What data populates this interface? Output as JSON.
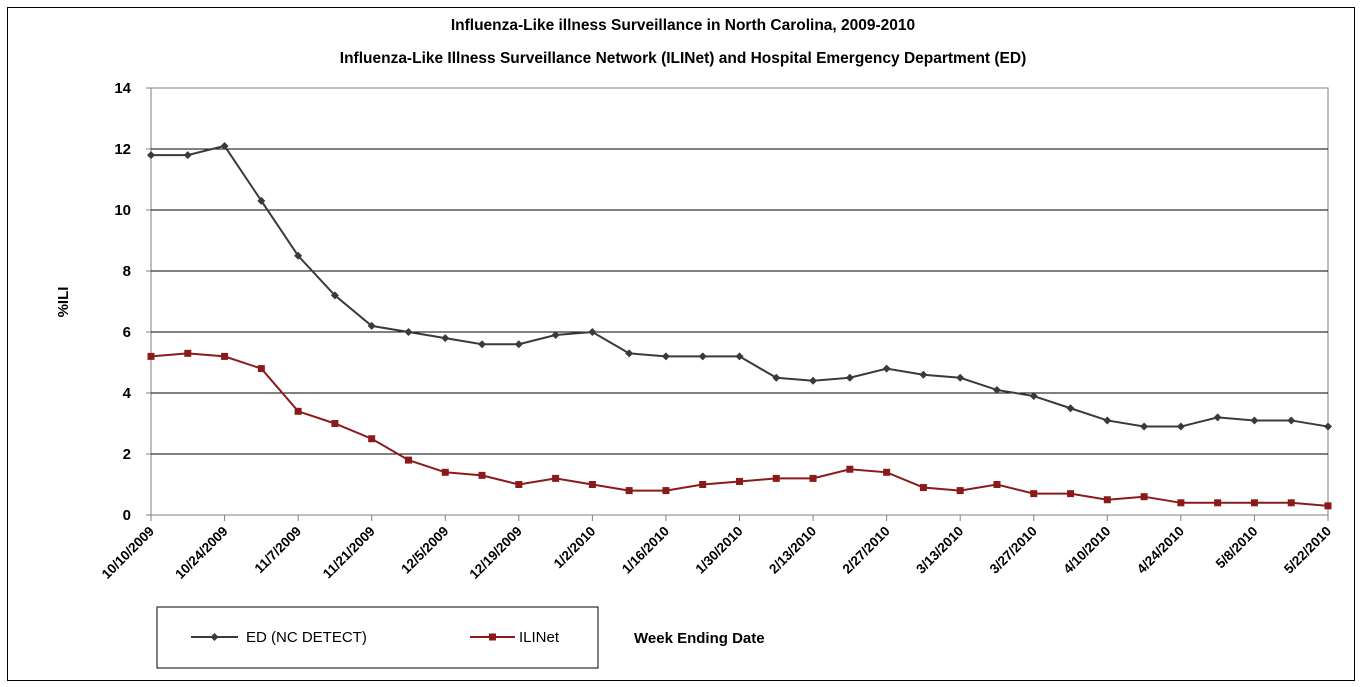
{
  "chart_data": {
    "type": "line",
    "title": "Influenza-Like illness Surveillance in North Carolina, 2009-2010",
    "subtitle": "Influenza-Like Illness Surveillance Network (ILINet) and Hospital Emergency Department (ED)",
    "ylabel": "%ILI",
    "xlabel": "Week Ending Date",
    "ylim": [
      0,
      14
    ],
    "yticks": [
      0,
      2,
      4,
      6,
      8,
      10,
      12,
      14
    ],
    "grid": "horizontal",
    "legend_position": "bottom-left",
    "x": [
      "10/10/2009",
      "10/17/2009",
      "10/24/2009",
      "10/31/2009",
      "11/7/2009",
      "11/14/2009",
      "11/21/2009",
      "11/28/2009",
      "12/5/2009",
      "12/12/2009",
      "12/19/2009",
      "12/26/2009",
      "1/2/2010",
      "1/9/2010",
      "1/16/2010",
      "1/23/2010",
      "1/30/2010",
      "2/6/2010",
      "2/13/2010",
      "2/20/2010",
      "2/27/2010",
      "3/6/2010",
      "3/13/2010",
      "3/20/2010",
      "3/27/2010",
      "4/3/2010",
      "4/10/2010",
      "4/17/2010",
      "4/24/2010",
      "5/1/2010",
      "5/8/2010",
      "5/15/2010",
      "5/22/2010"
    ],
    "x_tick_labels": [
      "10/10/2009",
      "10/24/2009",
      "11/7/2009",
      "11/21/2009",
      "12/5/2009",
      "12/19/2009",
      "1/2/2010",
      "1/16/2010",
      "1/30/2010",
      "2/13/2010",
      "2/27/2010",
      "3/13/2010",
      "3/27/2010",
      "4/10/2010",
      "4/24/2010",
      "5/8/2010",
      "5/22/2010"
    ],
    "series": [
      {
        "name": "ED (NC DETECT)",
        "color": "#3a3a3a",
        "marker": "diamond",
        "values": [
          11.8,
          11.8,
          12.1,
          10.3,
          8.5,
          7.2,
          6.2,
          6.0,
          5.8,
          5.6,
          5.6,
          5.9,
          6.0,
          5.3,
          5.2,
          5.2,
          5.2,
          4.5,
          4.4,
          4.5,
          4.8,
          4.6,
          4.5,
          4.1,
          3.9,
          3.5,
          3.1,
          2.9,
          2.9,
          3.2,
          3.1,
          3.1,
          2.9
        ]
      },
      {
        "name": "ILINet",
        "color": "#8b1a1a",
        "marker": "square",
        "values": [
          5.2,
          5.3,
          5.2,
          4.8,
          3.4,
          3.0,
          2.5,
          1.8,
          1.4,
          1.3,
          1.0,
          1.2,
          1.0,
          0.8,
          0.8,
          1.0,
          1.1,
          1.2,
          1.2,
          1.5,
          1.4,
          0.9,
          0.8,
          1.0,
          0.7,
          0.7,
          0.5,
          0.6,
          0.4,
          0.4,
          0.4,
          0.4,
          0.3
        ]
      }
    ]
  }
}
